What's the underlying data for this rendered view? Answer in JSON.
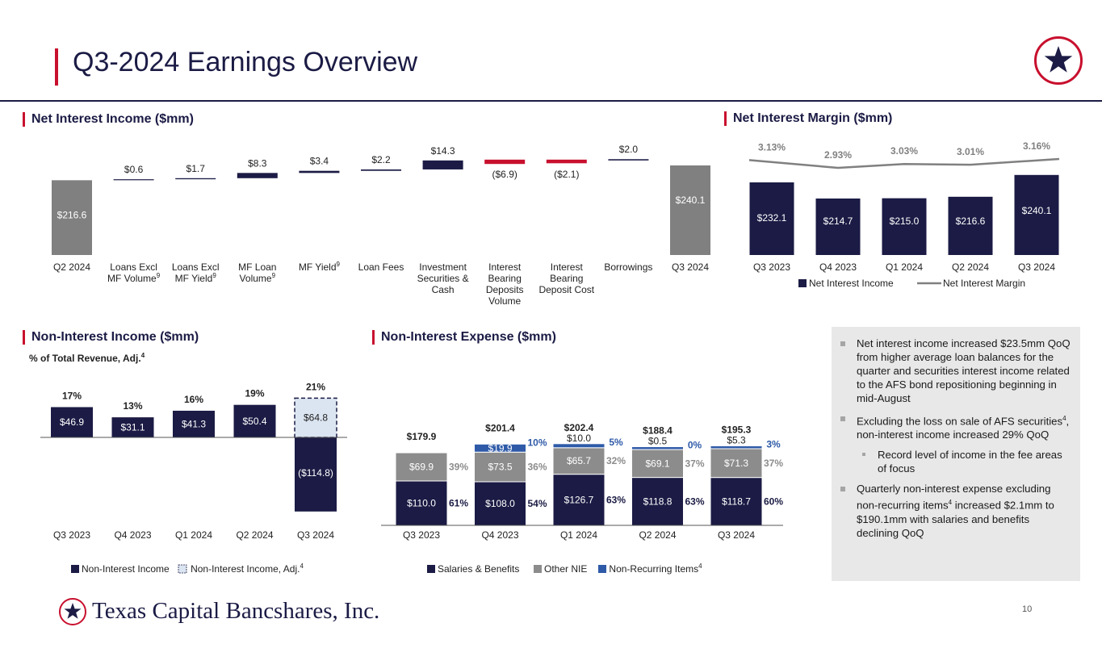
{
  "header": {
    "title": "Q3-2024 Earnings Overview"
  },
  "brand": {
    "navy": "#1b1b45",
    "red": "#c8102e",
    "gray": "#808080",
    "light_blue": "#dbe5f1",
    "blue": "#2e5aa8"
  },
  "sections": {
    "nii": "Net Interest Income ($mm)",
    "nim": "Net Interest Margin ($mm)",
    "nonii": "Non-Interest Income ($mm)",
    "nonii_sub": "% of Total Revenue, Adj.",
    "nonii_sub_sup": "4",
    "nie": "Non-Interest Expense ($mm)"
  },
  "chart_data": [
    {
      "id": "net-interest-income",
      "type": "bar",
      "subtype": "waterfall",
      "title": "Net Interest Income ($mm)",
      "categories": [
        "Q2 2024",
        "Loans Excl MF Volume",
        "Loans Excl MF Yield",
        "MF Loan Volume",
        "MF Yield",
        "Loan Fees",
        "Investment Securities & Cash",
        "Interest Bearing Deposits Volume",
        "Interest Bearing Deposit Cost",
        "Borrowings",
        "Q3 2024"
      ],
      "category_lines": [
        [
          "Q2 2024"
        ],
        [
          "Loans Excl",
          "MF Volume"
        ],
        [
          "Loans Excl",
          "MF Yield"
        ],
        [
          "MF Loan",
          "Volume"
        ],
        [
          "MF Yield"
        ],
        [
          "Loan Fees"
        ],
        [
          "Investment",
          "Securities &",
          "Cash"
        ],
        [
          "Interest",
          "Bearing",
          "Deposits",
          "Volume"
        ],
        [
          "Interest",
          "Bearing",
          "Deposit Cost"
        ],
        [
          "Borrowings"
        ],
        [
          "Q3 2024"
        ]
      ],
      "category_sup": [
        "",
        "9",
        "9",
        "9",
        "9",
        "",
        "",
        "",
        "",
        "",
        ""
      ],
      "values": [
        216.6,
        0.6,
        1.7,
        8.3,
        3.4,
        2.2,
        14.3,
        -6.9,
        -2.1,
        2.0,
        240.1
      ],
      "labels": [
        "$216.6",
        "$0.6",
        "$1.7",
        "$8.3",
        "$3.4",
        "$2.2",
        "$14.3",
        "($6.9)",
        "($2.1)",
        "$2.0",
        "$240.1"
      ],
      "kinds": [
        "total",
        "delta",
        "delta",
        "delta",
        "delta",
        "delta",
        "delta",
        "delta",
        "delta",
        "delta",
        "total"
      ]
    },
    {
      "id": "net-interest-margin",
      "type": "bar",
      "title": "Net Interest Margin ($mm)",
      "categories": [
        "Q3 2023",
        "Q4 2023",
        "Q1 2024",
        "Q2 2024",
        "Q3 2024"
      ],
      "series": [
        {
          "name": "Net Interest Income",
          "values": [
            232.1,
            214.7,
            215.0,
            216.6,
            240.1
          ],
          "labels": [
            "$232.1",
            "$214.7",
            "$215.0",
            "$216.6",
            "$240.1"
          ]
        },
        {
          "name": "Net Interest Margin",
          "values": [
            3.13,
            2.93,
            3.03,
            3.01,
            3.16
          ],
          "labels": [
            "3.13%",
            "2.93%",
            "3.03%",
            "3.01%",
            "3.16%"
          ]
        }
      ],
      "legend": [
        "Net Interest Income",
        "Net Interest Margin"
      ]
    },
    {
      "id": "non-interest-income",
      "type": "bar",
      "title": "Non-Interest Income ($mm)",
      "categories": [
        "Q3 2023",
        "Q4 2023",
        "Q1 2024",
        "Q2 2024",
        "Q3 2024"
      ],
      "series": [
        {
          "name": "Non-Interest Income",
          "values": [
            46.9,
            31.1,
            41.3,
            50.4,
            -114.8
          ],
          "labels": [
            "$46.9",
            "$31.1",
            "$41.3",
            "$50.4",
            "($114.8)"
          ]
        },
        {
          "name": "Non-Interest Income, Adj.",
          "values": [
            null,
            null,
            null,
            null,
            64.8
          ],
          "labels": [
            "",
            "",
            "",
            "",
            "$64.8"
          ]
        }
      ],
      "pct_total_revenue_adj": [
        "17%",
        "13%",
        "16%",
        "19%",
        "21%"
      ],
      "legend": [
        "Non-Interest Income",
        "Non-Interest Income, Adj."
      ],
      "legend_sup": "4"
    },
    {
      "id": "non-interest-expense",
      "type": "bar",
      "subtype": "stacked",
      "title": "Non-Interest Expense ($mm)",
      "categories": [
        "Q3 2023",
        "Q4 2023",
        "Q1 2024",
        "Q2 2024",
        "Q3 2024"
      ],
      "totals": [
        "$179.9",
        "$201.4",
        "$202.4",
        "$188.4",
        "$195.3"
      ],
      "series": [
        {
          "name": "Salaries & Benefits",
          "values": [
            110.0,
            108.0,
            126.7,
            118.8,
            118.7
          ],
          "labels": [
            "$110.0",
            "$108.0",
            "$126.7",
            "$118.8",
            "$118.7"
          ],
          "pct": [
            "61%",
            "54%",
            "63%",
            "63%",
            "60%"
          ]
        },
        {
          "name": "Other NIE",
          "values": [
            69.9,
            73.5,
            65.7,
            69.1,
            71.3
          ],
          "labels": [
            "$69.9",
            "$73.5",
            "$65.7",
            "$69.1",
            "$71.3"
          ],
          "pct": [
            "39%",
            "36%",
            "32%",
            "37%",
            "37%"
          ]
        },
        {
          "name": "Non-Recurring Items",
          "values": [
            0,
            19.9,
            10.0,
            0.5,
            5.3
          ],
          "labels": [
            "",
            "$19.9",
            "$10.0",
            "$0.5",
            "$5.3"
          ],
          "pct": [
            "",
            "10%",
            "5%",
            "0%",
            "3%"
          ]
        }
      ],
      "legend": [
        "Salaries & Benefits",
        "Other NIE",
        "Non-Recurring Items"
      ],
      "legend_sup": "4"
    }
  ],
  "notes": {
    "b1": "Net interest income increased $23.5mm QoQ from higher average loan balances for the quarter and securities interest income related to the AFS bond repositioning beginning in mid-August",
    "b2_pre": "Excluding the loss on sale of AFS securities",
    "b2_sup": "4",
    "b2_post": ", non-interest income increased 29% QoQ",
    "b3": "Record level of income in the fee areas of focus",
    "b4_pre": "Quarterly non-interest expense excluding non-recurring items",
    "b4_sup": "4",
    "b4_post": " increased $2.1mm to $190.1mm with salaries and benefits declining QoQ"
  },
  "footer": {
    "company": "Texas Capital Bancshares, Inc.",
    "page": "10"
  }
}
